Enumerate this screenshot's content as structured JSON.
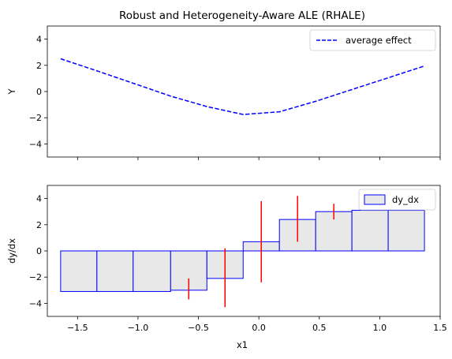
{
  "chart_data": [
    {
      "type": "line",
      "title": "Robust and Heterogeneity-Aware ALE (RHALE)",
      "xlabel": "",
      "ylabel": "Y",
      "xlim": [
        -1.75,
        1.5
      ],
      "ylim": [
        -5,
        5
      ],
      "yticks": [
        -4,
        -2,
        0,
        2,
        4
      ],
      "legend_position": "top-right",
      "series": [
        {
          "name": "average effect",
          "color": "#0000ff",
          "linestyle": "dashed",
          "x": [
            -1.64,
            -1.33,
            -1.03,
            -0.73,
            -0.43,
            -0.13,
            0.17,
            0.47,
            0.77,
            1.07,
            1.37
          ],
          "y": [
            2.5,
            1.55,
            0.6,
            -0.35,
            -1.15,
            -1.75,
            -1.55,
            -0.75,
            0.15,
            1.05,
            1.95
          ]
        }
      ]
    },
    {
      "type": "bar",
      "title": "",
      "xlabel": "x1",
      "ylabel": "dy/dx",
      "xlim": [
        -1.75,
        1.5
      ],
      "ylim": [
        -5,
        5
      ],
      "xticks": [
        "−1.5",
        "−1.0",
        "−0.5",
        "0.0",
        "0.5",
        "1.0",
        "1.5"
      ],
      "xtick_values": [
        -1.5,
        -1.0,
        -0.5,
        0.0,
        0.5,
        1.0,
        1.5
      ],
      "yticks": [
        -4,
        -2,
        0,
        2,
        4
      ],
      "legend_position": "top-right",
      "bar_fill": "#e8e8e8",
      "bar_edge": "#0000ff",
      "error_color": "#ff0000",
      "series": [
        {
          "name": "dy_dx",
          "bins": [
            {
              "x0": -1.64,
              "x1": -1.34,
              "value": -3.1
            },
            {
              "x0": -1.34,
              "x1": -1.04,
              "value": -3.1
            },
            {
              "x0": -1.04,
              "x1": -0.73,
              "value": -3.1
            },
            {
              "x0": -0.73,
              "x1": -0.43,
              "value": -3.0
            },
            {
              "x0": -0.43,
              "x1": -0.13,
              "value": -2.1
            },
            {
              "x0": -0.13,
              "x1": 0.17,
              "value": 0.7
            },
            {
              "x0": 0.17,
              "x1": 0.47,
              "value": 2.4
            },
            {
              "x0": 0.47,
              "x1": 0.77,
              "value": 3.0
            },
            {
              "x0": 0.77,
              "x1": 1.07,
              "value": 3.1
            },
            {
              "x0": 1.07,
              "x1": 1.37,
              "value": 3.1
            }
          ]
        }
      ],
      "error_bars": [
        {
          "x": -0.58,
          "low": -3.7,
          "high": -2.1
        },
        {
          "x": -0.28,
          "low": -4.3,
          "high": 0.2
        },
        {
          "x": 0.02,
          "low": -2.4,
          "high": 3.8
        },
        {
          "x": 0.32,
          "low": 0.7,
          "high": 4.2
        },
        {
          "x": 0.62,
          "low": 2.4,
          "high": 3.6
        }
      ]
    }
  ]
}
